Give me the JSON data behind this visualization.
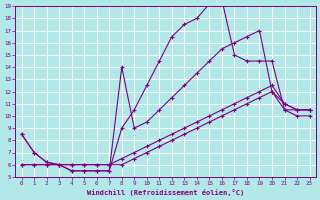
{
  "xlabel": "Windchill (Refroidissement éolien,°C)",
  "bg_color": "#b2e8e8",
  "grid_color": "#ffffff",
  "line_color": "#800080",
  "xlim": [
    -0.5,
    23.5
  ],
  "ylim": [
    5,
    19
  ],
  "xticks": [
    0,
    1,
    2,
    3,
    4,
    5,
    6,
    7,
    8,
    9,
    10,
    11,
    12,
    13,
    14,
    15,
    16,
    17,
    18,
    19,
    20,
    21,
    22,
    23
  ],
  "yticks": [
    5,
    6,
    7,
    8,
    9,
    10,
    11,
    12,
    13,
    14,
    15,
    16,
    17,
    18,
    19
  ],
  "series": [
    {
      "x": [
        0,
        1,
        2,
        3,
        4,
        5,
        6,
        7,
        8,
        9,
        10,
        11,
        12,
        13,
        14,
        15,
        16,
        17,
        18,
        19,
        20,
        21,
        22,
        23
      ],
      "y": [
        8.5,
        7.0,
        6.2,
        6.0,
        5.5,
        5.5,
        5.5,
        5.5,
        9.0,
        10.5,
        12.5,
        14.5,
        16.5,
        17.5,
        18.0,
        19.2,
        19.5,
        15.0,
        14.5,
        14.5,
        14.5,
        10.5,
        10.5,
        10.5
      ]
    },
    {
      "x": [
        0,
        1,
        2,
        3,
        4,
        5,
        6,
        7,
        8,
        9,
        10,
        11,
        12,
        13,
        14,
        15,
        16,
        17,
        18,
        19,
        20,
        21,
        22,
        23
      ],
      "y": [
        8.5,
        7.0,
        6.2,
        6.0,
        5.5,
        5.5,
        5.5,
        5.5,
        14.0,
        9.0,
        9.5,
        10.5,
        11.5,
        12.5,
        13.5,
        14.5,
        15.5,
        16.0,
        16.5,
        17.0,
        12.0,
        11.0,
        10.5,
        10.5
      ]
    },
    {
      "x": [
        0,
        1,
        2,
        3,
        4,
        5,
        6,
        7,
        8,
        9,
        10,
        11,
        12,
        13,
        14,
        15,
        16,
        17,
        18,
        19,
        20,
        21,
        22,
        23
      ],
      "y": [
        6.0,
        6.0,
        6.0,
        6.0,
        6.0,
        6.0,
        6.0,
        6.0,
        6.5,
        7.0,
        7.5,
        8.0,
        8.5,
        9.0,
        9.5,
        10.0,
        10.5,
        11.0,
        11.5,
        12.0,
        12.5,
        11.0,
        10.5,
        10.5
      ]
    },
    {
      "x": [
        0,
        1,
        2,
        3,
        4,
        5,
        6,
        7,
        8,
        9,
        10,
        11,
        12,
        13,
        14,
        15,
        16,
        17,
        18,
        19,
        20,
        21,
        22,
        23
      ],
      "y": [
        6.0,
        6.0,
        6.0,
        6.0,
        6.0,
        6.0,
        6.0,
        6.0,
        6.0,
        6.5,
        7.0,
        7.5,
        8.0,
        8.5,
        9.0,
        9.5,
        10.0,
        10.5,
        11.0,
        11.5,
        12.0,
        10.5,
        10.0,
        10.0
      ]
    }
  ]
}
